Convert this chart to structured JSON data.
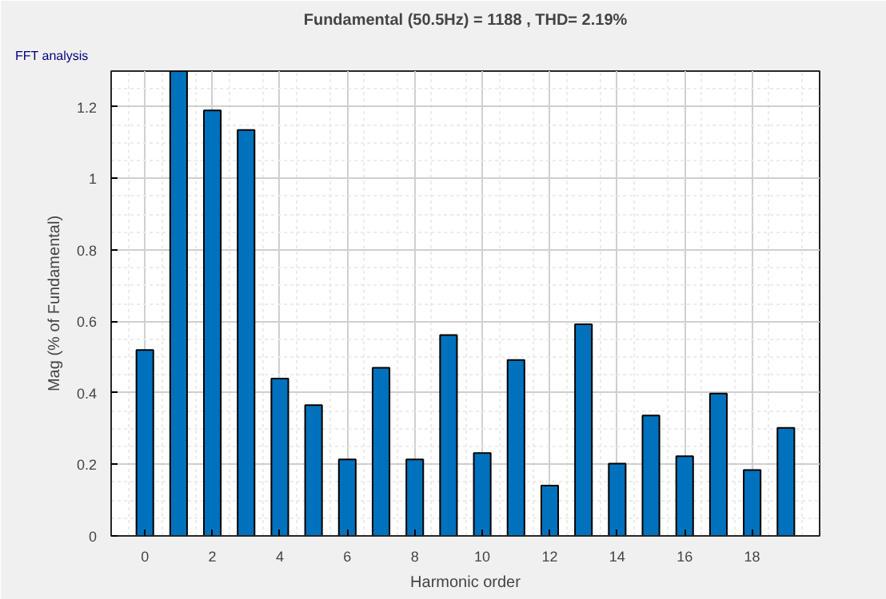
{
  "chart_data": {
    "type": "bar",
    "title": "Fundamental (50.5Hz) = 1188 , THD= 2.19%",
    "xlabel": "Harmonic order",
    "ylabel": "Mag (% of Fundamental)",
    "annotations": [
      "FFT analysis"
    ],
    "x": [
      0,
      1,
      2,
      3,
      4,
      5,
      6,
      7,
      8,
      9,
      10,
      11,
      12,
      13,
      14,
      15,
      16,
      17,
      18,
      19
    ],
    "values": [
      0.52,
      1.3,
      1.19,
      1.135,
      0.44,
      0.366,
      0.214,
      0.47,
      0.214,
      0.562,
      0.232,
      0.492,
      0.141,
      0.592,
      0.202,
      0.337,
      0.223,
      0.398,
      0.184,
      0.302
    ],
    "color": "#0072bd",
    "xlim": [
      -1,
      20
    ],
    "ylim": [
      0,
      1.3
    ],
    "xticks": [
      0,
      2,
      4,
      6,
      8,
      10,
      12,
      14,
      16,
      18
    ],
    "yticks": [
      0,
      0.2,
      0.4,
      0.6,
      0.8,
      1,
      1.2
    ],
    "grid": true
  }
}
